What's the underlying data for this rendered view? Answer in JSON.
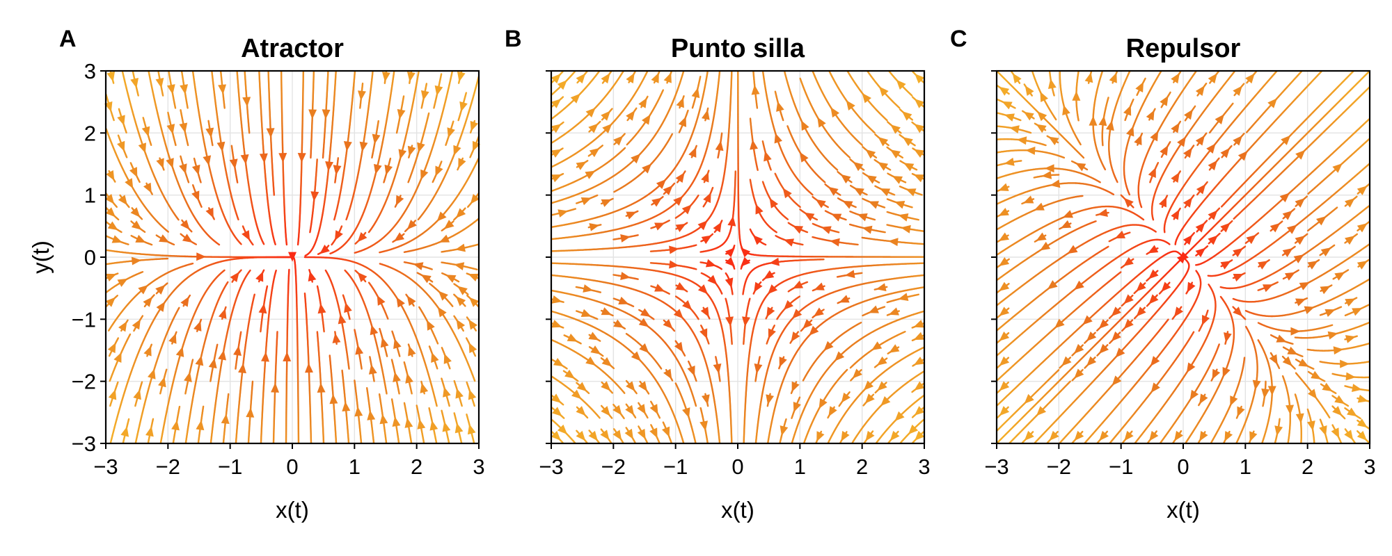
{
  "chart_data": [
    {
      "type": "streamplot",
      "letter": "A",
      "title": "Atractor",
      "xlabel": "x(t)",
      "ylabel": "y(t)",
      "xlim": [
        -3,
        3
      ],
      "ylim": [
        -3,
        3
      ],
      "xticks": [
        "−3",
        "−2",
        "−1",
        "0",
        "1",
        "2",
        "3"
      ],
      "yticks": [
        "3",
        "2",
        "1",
        "0",
        "−1",
        "−2",
        "−3"
      ],
      "show_y_tick_labels": true,
      "grid": true,
      "colormap": [
        "#f5b22a",
        "#e8791f",
        "#fa2a14"
      ],
      "flow": [
        [
          -0.5,
          0
        ],
        [
          0,
          -2
        ]
      ]
    },
    {
      "type": "streamplot",
      "letter": "B",
      "title": "Punto silla",
      "xlabel": "x(t)",
      "ylabel": "",
      "xlim": [
        -3,
        3
      ],
      "ylim": [
        -3,
        3
      ],
      "xticks": [
        "−3",
        "−2",
        "−1",
        "0",
        "1",
        "2",
        "3"
      ],
      "yticks": [],
      "show_y_tick_labels": false,
      "grid": true,
      "colormap": [
        "#f5b22a",
        "#e8791f",
        "#fa2a14"
      ],
      "flow": [
        [
          -1,
          0
        ],
        [
          0,
          1
        ]
      ]
    },
    {
      "type": "streamplot",
      "letter": "C",
      "title": "Repulsor",
      "xlabel": "x(t)",
      "ylabel": "",
      "xlim": [
        -3,
        3
      ],
      "ylim": [
        -3,
        3
      ],
      "xticks": [
        "−3",
        "−2",
        "−1",
        "0",
        "1",
        "2",
        "3"
      ],
      "yticks": [],
      "show_y_tick_labels": false,
      "grid": true,
      "colormap": [
        "#f5b22a",
        "#e8791f",
        "#fa2a14"
      ],
      "flow": [
        [
          1.2,
          0.8
        ],
        [
          0.8,
          1.2
        ]
      ]
    }
  ]
}
